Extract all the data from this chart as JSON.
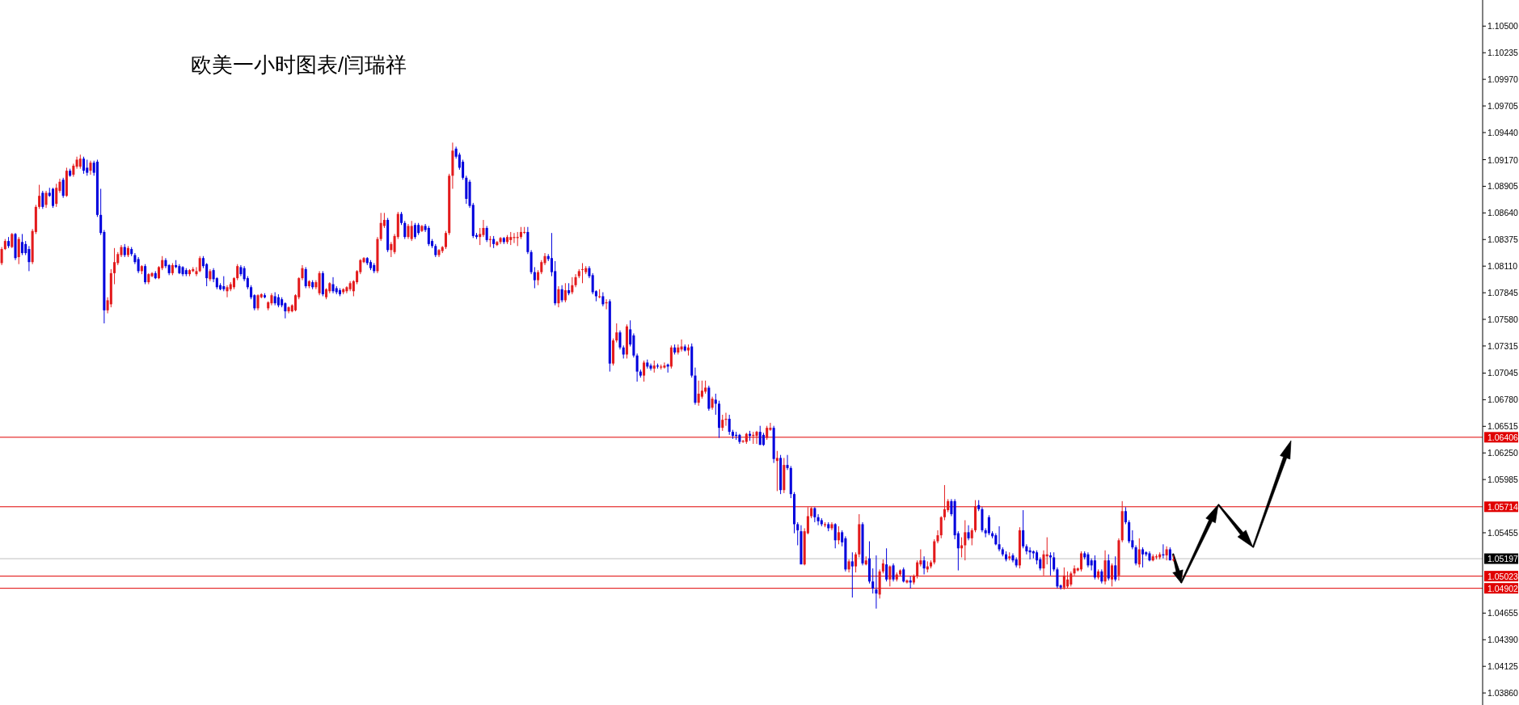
{
  "chart_data": {
    "type": "candlestick",
    "title": "欧美一小时图表/闫瑞祥",
    "ylim": [
      1.0374,
      1.1076
    ],
    "yticks": [
      {
        "value": 1.105,
        "label": "1.10500"
      },
      1.10235,
      {
        "value": 1.0997,
        "label": "1.09970"
      },
      1.09705,
      {
        "value": 1.0944,
        "label": "1.09440"
      },
      {
        "value": 1.0917,
        "label": "1.09170"
      },
      1.08905,
      {
        "value": 1.0864,
        "label": "1.08640"
      },
      1.08375,
      {
        "value": 1.0811,
        "label": "1.08110"
      },
      1.07845,
      {
        "value": 1.0758,
        "label": "1.07580"
      },
      1.07315,
      1.07045,
      {
        "value": 1.0678,
        "label": "1.06780"
      },
      1.06515,
      {
        "value": 1.0625,
        "label": "1.06250"
      },
      1.05985,
      1.05455,
      1.04655,
      {
        "value": 1.0439,
        "label": "1.04390"
      },
      1.04125,
      {
        "value": 1.0386,
        "label": "1.03860"
      }
    ],
    "tick_labels": "y",
    "grid": false,
    "ref_lines": [
      {
        "axis": "y",
        "value": 1.06406,
        "label": "1.06406",
        "color": "#e00000"
      },
      {
        "axis": "y",
        "value": 1.05714,
        "label": "1.05714",
        "color": "#e00000"
      },
      {
        "axis": "y",
        "value": 1.05197,
        "label": "1.05197",
        "color": "#c0c0c0"
      },
      {
        "axis": "y",
        "value": 1.05023,
        "label": "1.05023",
        "color": "#e00000"
      },
      {
        "axis": "y",
        "value": 1.04902,
        "label": "1.04902",
        "color": "#e00000"
      }
    ],
    "categories": [
      null,
      null,
      null,
      null,
      null,
      null,
      null,
      null,
      null,
      null,
      null,
      null,
      null,
      null,
      null,
      null,
      null,
      null,
      null,
      null,
      null,
      null,
      null,
      null,
      null,
      null,
      null,
      null,
      null,
      null,
      null,
      null,
      null,
      null,
      null,
      null,
      null,
      null,
      null,
      null,
      null,
      null,
      null,
      null,
      null,
      null,
      null,
      null,
      null,
      null,
      null,
      null,
      null,
      null,
      null,
      null,
      null,
      null,
      null,
      null,
      null,
      null,
      null,
      null,
      null,
      null,
      null,
      null,
      null,
      null,
      null,
      null,
      null,
      null,
      null,
      null,
      null,
      null,
      null,
      null,
      null,
      null,
      null,
      null,
      null,
      null,
      null,
      null,
      null,
      null,
      null,
      null,
      null,
      null,
      null,
      null,
      null,
      null,
      null,
      null,
      null,
      null,
      null,
      null,
      null,
      null,
      null,
      null,
      null,
      null,
      null,
      null,
      null,
      null,
      null,
      null,
      null,
      null,
      null,
      null,
      null,
      null,
      null,
      null,
      null,
      null,
      null,
      null,
      null,
      null,
      null,
      null,
      null,
      null,
      null,
      null,
      null,
      null,
      null,
      null,
      null,
      null,
      null,
      null,
      null,
      null,
      null,
      null,
      null,
      null,
      null,
      null,
      null,
      null,
      null,
      null,
      null,
      null,
      null,
      null,
      null,
      null,
      null,
      null,
      null,
      null,
      null,
      null,
      null,
      null,
      null,
      null,
      null,
      null,
      null,
      null,
      null,
      null,
      null,
      null,
      null,
      null,
      null,
      null,
      null,
      null,
      null,
      null,
      null,
      null,
      null,
      null,
      null,
      null,
      null,
      null,
      null,
      null,
      null,
      null,
      null,
      null,
      null,
      null,
      null,
      null,
      null,
      null,
      null,
      null,
      null,
      null,
      null,
      null,
      null,
      null,
      null,
      null,
      null,
      null,
      null,
      null,
      null,
      null,
      null,
      null,
      null,
      null,
      null,
      null,
      null,
      null,
      null,
      null,
      null,
      null,
      null,
      null,
      null,
      null,
      null,
      null,
      null,
      null,
      null,
      null,
      null,
      null,
      null,
      null,
      null,
      null,
      null,
      null,
      null,
      null,
      null,
      null,
      null,
      null,
      null,
      null,
      null,
      null,
      null,
      null,
      null,
      null,
      null,
      null,
      null,
      null,
      null,
      null,
      null,
      null,
      null,
      null,
      null,
      null,
      null,
      null,
      null,
      null,
      null,
      null,
      null,
      null,
      null,
      null,
      null,
      null,
      null,
      null,
      null,
      null,
      null,
      null,
      null,
      null,
      null,
      null,
      null,
      null,
      null,
      null,
      null,
      null,
      null,
      null,
      null,
      null,
      null,
      null,
      null,
      null,
      null,
      null,
      null,
      null,
      null,
      null,
      null,
      null,
      null,
      null,
      null,
      null,
      null,
      null,
      null,
      null,
      null,
      null,
      null,
      null,
      null,
      null,
      null,
      null,
      null,
      null,
      null,
      null,
      null,
      null,
      null,
      null,
      null,
      null,
      null,
      null,
      null,
      null,
      null,
      null,
      null,
      null,
      null,
      null,
      null,
      null,
      null,
      null,
      null,
      null,
      null,
      null,
      null,
      null,
      null,
      null,
      null,
      null,
      null,
      null,
      null,
      null,
      null,
      null,
      null,
      null,
      null,
      null,
      null,
      null,
      null,
      null,
      null,
      null,
      null,
      null,
      null,
      null,
      null,
      null,
      null,
      null,
      null,
      null,
      null,
      null,
      null,
      null,
      null,
      null,
      null,
      null,
      null,
      null,
      null,
      null,
      null,
      null,
      null,
      null,
      null,
      null,
      null,
      null,
      null,
      null,
      null,
      null,
      null,
      null,
      null,
      null,
      null,
      null,
      null,
      null,
      null,
      null
    ],
    "ohlc": [
      [
        1.0814,
        1.083,
        1.0812,
        1.0828
      ],
      [
        1.0828,
        1.0838,
        1.0827,
        1.0836
      ],
      [
        1.0836,
        1.084,
        1.0829,
        1.0831
      ],
      [
        1.083,
        1.0844,
        1.0829,
        1.0843
      ],
      [
        1.0843,
        1.0844,
        1.0817,
        1.0819
      ],
      [
        1.082,
        1.084,
        1.0813,
        1.0838
      ],
      [
        1.0835,
        1.0843,
        1.0822,
        1.0824
      ],
      [
        1.0833,
        1.0836,
        1.0822,
        1.0824
      ],
      [
        1.0828,
        1.0831,
        1.0806,
        1.0815
      ],
      [
        1.0815,
        1.0848,
        1.0813,
        1.0846
      ],
      [
        1.0845,
        1.0872,
        1.0843,
        1.087
      ],
      [
        1.087,
        1.0892,
        1.0868,
        1.0881
      ],
      [
        1.0884,
        1.0886,
        1.0868,
        1.087
      ],
      [
        1.0872,
        1.0886,
        1.0869,
        1.0884
      ],
      [
        1.0884,
        1.0889,
        1.088,
        1.0881
      ],
      [
        1.0888,
        1.0889,
        1.0869,
        1.0871
      ],
      [
        1.0873,
        1.0893,
        1.087,
        1.0889
      ],
      [
        1.0886,
        1.0898,
        1.0884,
        1.0895
      ],
      [
        1.0897,
        1.0899,
        1.0879,
        1.0881
      ],
      [
        1.0881,
        1.0909,
        1.088,
        1.0906
      ],
      [
        1.0906,
        1.0908,
        1.09,
        1.0901
      ],
      [
        1.0902,
        1.0913,
        1.09,
        1.0911
      ],
      [
        1.091,
        1.092,
        1.0908,
        1.0917
      ],
      [
        1.091,
        1.0922,
        1.0908,
        1.0918
      ],
      [
        1.0918,
        1.092,
        1.0903,
        1.0906
      ],
      [
        1.0909,
        1.0917,
        1.0901,
        1.0904
      ],
      [
        1.0906,
        1.0916,
        1.0902,
        1.0914
      ],
      [
        1.0914,
        1.0916,
        1.0901,
        1.0904
      ],
      [
        1.0915,
        1.0917,
        1.086,
        1.0862
      ],
      [
        1.0862,
        1.0888,
        1.0842,
        1.0844
      ],
      [
        1.0845,
        1.0847,
        1.0754,
        1.0767
      ],
      [
        1.0767,
        1.078,
        1.0764,
        1.0777
      ],
      [
        1.0773,
        1.0808,
        1.077,
        1.0804
      ],
      [
        1.0804,
        1.0829,
        1.0793,
        1.0815
      ],
      [
        1.0814,
        1.0825,
        1.0812,
        1.0823
      ],
      [
        1.0822,
        1.0832,
        1.082,
        1.083
      ],
      [
        1.083,
        1.0833,
        1.082,
        1.0822
      ],
      [
        1.0822,
        1.0831,
        1.082,
        1.0829
      ],
      [
        1.0828,
        1.083,
        1.0821,
        1.0823
      ],
      [
        1.0822,
        1.0824,
        1.0813,
        1.0815
      ],
      [
        1.0818,
        1.082,
        1.0804,
        1.0806
      ],
      [
        1.0806,
        1.0812,
        1.0803,
        1.0811
      ],
      [
        1.0811,
        1.0813,
        1.0793,
        1.0795
      ],
      [
        1.0795,
        1.0804,
        1.0793,
        1.0803
      ],
      [
        1.0801,
        1.0805,
        1.08,
        1.0804
      ],
      [
        1.0804,
        1.0806,
        1.0798,
        1.0799
      ],
      [
        1.0799,
        1.0811,
        1.0798,
        1.081
      ],
      [
        1.0809,
        1.0821,
        1.0807,
        1.0817
      ],
      [
        1.0817,
        1.0819,
        1.0809,
        1.0811
      ],
      [
        1.0812,
        1.0813,
        1.0802,
        1.0804
      ],
      [
        1.0804,
        1.0814,
        1.0802,
        1.0812
      ],
      [
        1.0812,
        1.0817,
        1.0809,
        1.081
      ],
      [
        1.0811,
        1.0813,
        1.0803,
        1.0804
      ],
      [
        1.081,
        1.0811,
        1.0801,
        1.0803
      ],
      [
        1.0807,
        1.0809,
        1.0801,
        1.0803
      ],
      [
        1.0803,
        1.0808,
        1.0801,
        1.0807
      ],
      [
        1.0806,
        1.081,
        1.0805,
        1.0808
      ],
      [
        1.0803,
        1.081,
        1.0801,
        1.0806
      ],
      [
        1.0806,
        1.0821,
        1.0805,
        1.0819
      ],
      [
        1.0819,
        1.0821,
        1.0809,
        1.0811
      ],
      [
        1.0813,
        1.0814,
        1.0791,
        1.0799
      ],
      [
        1.0798,
        1.0808,
        1.0796,
        1.0806
      ],
      [
        1.0807,
        1.0809,
        1.0795,
        1.0798
      ],
      [
        1.0799,
        1.08,
        1.0788,
        1.079
      ],
      [
        1.0792,
        1.0794,
        1.0787,
        1.0788
      ],
      [
        1.0791,
        1.0801,
        1.0786,
        1.0788
      ],
      [
        1.0786,
        1.0792,
        1.078,
        1.079
      ],
      [
        1.0788,
        1.0795,
        1.0786,
        1.0793
      ],
      [
        1.079,
        1.08,
        1.0788,
        1.0799
      ],
      [
        1.0799,
        1.0813,
        1.0797,
        1.0811
      ],
      [
        1.081,
        1.0812,
        1.0801,
        1.0803
      ],
      [
        1.0809,
        1.0811,
        1.0796,
        1.0798
      ],
      [
        1.0799,
        1.0801,
        1.0788,
        1.079
      ],
      [
        1.079,
        1.0792,
        1.0778,
        1.078
      ],
      [
        1.0782,
        1.0783,
        1.0767,
        1.0769
      ],
      [
        1.0769,
        1.0783,
        1.0767,
        1.0782
      ],
      [
        1.078,
        1.0784,
        1.0779,
        1.0783
      ],
      [
        1.0782,
        1.0784,
        1.0779,
        1.078
      ],
      [
        1.0769,
        1.0776,
        1.0767,
        1.0775
      ],
      [
        1.0774,
        1.0784,
        1.0772,
        1.0782
      ],
      [
        1.0781,
        1.0785,
        1.0772,
        1.0774
      ],
      [
        1.078,
        1.0783,
        1.077,
        1.0772
      ],
      [
        1.0778,
        1.078,
        1.077,
        1.0772
      ],
      [
        1.0774,
        1.0775,
        1.0759,
        1.0766
      ],
      [
        1.0766,
        1.0771,
        1.0764,
        1.077
      ],
      [
        1.0766,
        1.0773,
        1.0765,
        1.0772
      ],
      [
        1.0767,
        1.0783,
        1.0766,
        1.0782
      ],
      [
        1.078,
        1.08,
        1.0778,
        1.0799
      ],
      [
        1.0799,
        1.0812,
        1.0797,
        1.0809
      ],
      [
        1.0808,
        1.081,
        1.0789,
        1.0791
      ],
      [
        1.0791,
        1.0797,
        1.0789,
        1.0796
      ],
      [
        1.0795,
        1.0797,
        1.0788,
        1.079
      ],
      [
        1.079,
        1.0797,
        1.0788,
        1.0795
      ],
      [
        1.0784,
        1.0806,
        1.0782,
        1.0804
      ],
      [
        1.0804,
        1.0806,
        1.0781,
        1.0783
      ],
      [
        1.078,
        1.0789,
        1.0778,
        1.0788
      ],
      [
        1.0786,
        1.0795,
        1.0784,
        1.0794
      ],
      [
        1.0793,
        1.08,
        1.0784,
        1.0786
      ],
      [
        1.0789,
        1.0791,
        1.0783,
        1.0785
      ],
      [
        1.0787,
        1.0789,
        1.0781,
        1.0783
      ],
      [
        1.0785,
        1.0789,
        1.0783,
        1.0788
      ],
      [
        1.0786,
        1.0791,
        1.0784,
        1.079
      ],
      [
        1.0788,
        1.0796,
        1.0786,
        1.0794
      ],
      [
        1.0786,
        1.0797,
        1.0781,
        1.0796
      ],
      [
        1.0795,
        1.0807,
        1.0793,
        1.0806
      ],
      [
        1.0805,
        1.0818,
        1.0803,
        1.0817
      ],
      [
        1.0815,
        1.082,
        1.0814,
        1.0819
      ],
      [
        1.0819,
        1.082,
        1.0812,
        1.0814
      ],
      [
        1.0815,
        1.0817,
        1.0807,
        1.0809
      ],
      [
        1.0812,
        1.0814,
        1.0804,
        1.0806
      ],
      [
        1.0806,
        1.084,
        1.0804,
        1.0838
      ],
      [
        1.0838,
        1.0864,
        1.0836,
        1.0854
      ],
      [
        1.0851,
        1.0864,
        1.0849,
        1.0857
      ],
      [
        1.0857,
        1.0859,
        1.0825,
        1.0827
      ],
      [
        1.0827,
        1.0835,
        1.082,
        1.0833
      ],
      [
        1.0825,
        1.0843,
        1.0823,
        1.0841
      ],
      [
        1.084,
        1.0865,
        1.0838,
        1.0863
      ],
      [
        1.0863,
        1.0865,
        1.0852,
        1.0854
      ],
      [
        1.0854,
        1.0856,
        1.0838,
        1.084
      ],
      [
        1.084,
        1.0853,
        1.0838,
        1.0851
      ],
      [
        1.0838,
        1.0856,
        1.0836,
        1.0851
      ],
      [
        1.0852,
        1.0854,
        1.0838,
        1.084
      ],
      [
        1.0852,
        1.0854,
        1.0842,
        1.0844
      ],
      [
        1.0846,
        1.0852,
        1.0845,
        1.0851
      ],
      [
        1.0851,
        1.0853,
        1.0845,
        1.0847
      ],
      [
        1.0849,
        1.0851,
        1.0831,
        1.0833
      ],
      [
        1.0836,
        1.0838,
        1.0829,
        1.0831
      ],
      [
        1.0831,
        1.0833,
        1.082,
        1.0822
      ],
      [
        1.0822,
        1.0828,
        1.082,
        1.0827
      ],
      [
        1.0826,
        1.0831,
        1.0824,
        1.083
      ],
      [
        1.083,
        1.0846,
        1.0828,
        1.0844
      ],
      [
        1.0844,
        1.0903,
        1.0842,
        1.0901
      ],
      [
        1.0901,
        1.0934,
        1.0888,
        1.0926
      ],
      [
        1.0928,
        1.093,
        1.0918,
        1.092
      ],
      [
        1.0922,
        1.0924,
        1.0907,
        1.0909
      ],
      [
        1.0915,
        1.0917,
        1.0897,
        1.0899
      ],
      [
        1.0899,
        1.0901,
        1.0873,
        1.0878
      ],
      [
        1.0895,
        1.0897,
        1.0869,
        1.0871
      ],
      [
        1.0872,
        1.0874,
        1.0839,
        1.0841
      ],
      [
        1.0842,
        1.0844,
        1.0838,
        1.084
      ],
      [
        1.084,
        1.0849,
        1.0832,
        1.0843
      ],
      [
        1.0842,
        1.0857,
        1.084,
        1.0849
      ],
      [
        1.0849,
        1.0851,
        1.0835,
        1.0837
      ],
      [
        1.0837,
        1.0841,
        1.083,
        1.0838
      ],
      [
        1.0838,
        1.0841,
        1.0829,
        1.0833
      ],
      [
        1.0832,
        1.0836,
        1.0831,
        1.0835
      ],
      [
        1.0835,
        1.084,
        1.0833,
        1.0839
      ],
      [
        1.0839,
        1.084,
        1.0833,
        1.0835
      ],
      [
        1.0835,
        1.0842,
        1.0833,
        1.084
      ],
      [
        1.0837,
        1.0845,
        1.0832,
        1.084
      ],
      [
        1.0839,
        1.0844,
        1.0834,
        1.084
      ],
      [
        1.0839,
        1.0845,
        1.0831,
        1.084
      ],
      [
        1.084,
        1.085,
        1.0838,
        1.0845
      ],
      [
        1.0845,
        1.085,
        1.0843,
        1.0845
      ],
      [
        1.0845,
        1.085,
        1.0823,
        1.0825
      ],
      [
        1.0825,
        1.0827,
        1.0803,
        1.0805
      ],
      [
        1.0805,
        1.081,
        1.0789,
        1.0797
      ],
      [
        1.0797,
        1.0807,
        1.0792,
        1.0805
      ],
      [
        1.0805,
        1.0817,
        1.0803,
        1.0815
      ],
      [
        1.0814,
        1.0824,
        1.0812,
        1.0821
      ],
      [
        1.0821,
        1.0823,
        1.0816,
        1.0818
      ],
      [
        1.0819,
        1.0844,
        1.0801,
        1.0805
      ],
      [
        1.0806,
        1.0816,
        1.0772,
        1.0774
      ],
      [
        1.0774,
        1.0791,
        1.077,
        1.0788
      ],
      [
        1.0788,
        1.0792,
        1.0775,
        1.0777
      ],
      [
        1.0777,
        1.0794,
        1.0775,
        1.0787
      ],
      [
        1.0787,
        1.0794,
        1.0782,
        1.0784
      ],
      [
        1.0785,
        1.08,
        1.0783,
        1.0792
      ],
      [
        1.0792,
        1.0803,
        1.079,
        1.08
      ],
      [
        1.0801,
        1.0808,
        1.0799,
        1.0806
      ],
      [
        1.0808,
        1.0814,
        1.0794,
        1.0808
      ],
      [
        1.0805,
        1.0811,
        1.0803,
        1.0809
      ],
      [
        1.0809,
        1.0811,
        1.0799,
        1.0801
      ],
      [
        1.0802,
        1.0804,
        1.0783,
        1.0785
      ],
      [
        1.0786,
        1.0787,
        1.0776,
        1.0781
      ],
      [
        1.078,
        1.0788,
        1.0779,
        1.0781
      ],
      [
        1.0781,
        1.0785,
        1.0771,
        1.0773
      ],
      [
        1.0774,
        1.0778,
        1.0768,
        1.0775
      ],
      [
        1.0776,
        1.0778,
        1.0706,
        1.0714
      ],
      [
        1.0714,
        1.0739,
        1.0712,
        1.0737
      ],
      [
        1.0737,
        1.0754,
        1.0735,
        1.0745
      ],
      [
        1.0745,
        1.0747,
        1.0728,
        1.073
      ],
      [
        1.073,
        1.0732,
        1.0719,
        1.0723
      ],
      [
        1.0723,
        1.0753,
        1.0719,
        1.0751
      ],
      [
        1.0748,
        1.0757,
        1.0731,
        1.0733
      ],
      [
        1.0742,
        1.0744,
        1.072,
        1.0722
      ],
      [
        1.0722,
        1.0724,
        1.0696,
        1.0706
      ],
      [
        1.0706,
        1.0708,
        1.07,
        1.0702
      ],
      [
        1.0702,
        1.0717,
        1.0696,
        1.0715
      ],
      [
        1.0715,
        1.0718,
        1.0709,
        1.0711
      ],
      [
        1.0712,
        1.0714,
        1.0707,
        1.0709
      ],
      [
        1.0709,
        1.0717,
        1.0705,
        1.0712
      ],
      [
        1.0712,
        1.0714,
        1.0709,
        1.0711
      ],
      [
        1.071,
        1.0713,
        1.0708,
        1.0711
      ],
      [
        1.071,
        1.0715,
        1.0709,
        1.0712
      ],
      [
        1.0713,
        1.0714,
        1.0705,
        1.0711
      ],
      [
        1.0711,
        1.0732,
        1.0709,
        1.073
      ],
      [
        1.073,
        1.0733,
        1.0723,
        1.0725
      ],
      [
        1.0725,
        1.0733,
        1.0723,
        1.073
      ],
      [
        1.0728,
        1.0738,
        1.0726,
        1.0731
      ],
      [
        1.0731,
        1.0733,
        1.0726,
        1.0727
      ],
      [
        1.0727,
        1.0733,
        1.0722,
        1.073
      ],
      [
        1.0731,
        1.0734,
        1.07,
        1.0702
      ],
      [
        1.0702,
        1.071,
        1.0673,
        1.0675
      ],
      [
        1.0675,
        1.0697,
        1.0672,
        1.0684
      ],
      [
        1.0681,
        1.0697,
        1.0679,
        1.0687
      ],
      [
        1.0686,
        1.0697,
        1.0684,
        1.069
      ],
      [
        1.069,
        1.0692,
        1.0667,
        1.0669
      ],
      [
        1.067,
        1.0681,
        1.0668,
        1.0679
      ],
      [
        1.0678,
        1.0684,
        1.0663,
        1.0674
      ],
      [
        1.0674,
        1.0677,
        1.064,
        1.065
      ],
      [
        1.065,
        1.0663,
        1.0647,
        1.0658
      ],
      [
        1.0658,
        1.0665,
        1.0652,
        1.0659
      ],
      [
        1.0659,
        1.0663,
        1.0643,
        1.0646
      ],
      [
        1.0646,
        1.0648,
        1.0639,
        1.0642
      ],
      [
        1.0643,
        1.0646,
        1.0638,
        1.0642
      ],
      [
        1.0643,
        1.0644,
        1.0634,
        1.0636
      ],
      [
        1.0636,
        1.0638,
        1.0635,
        1.0637
      ],
      [
        1.0636,
        1.0645,
        1.0634,
        1.0644
      ],
      [
        1.0644,
        1.0647,
        1.0637,
        1.0642
      ],
      [
        1.0642,
        1.0646,
        1.0634,
        1.0643
      ],
      [
        1.0642,
        1.0647,
        1.0634,
        1.0646
      ],
      [
        1.0646,
        1.0652,
        1.0633,
        1.0633
      ],
      [
        1.0643,
        1.0645,
        1.0632,
        1.0633
      ],
      [
        1.064,
        1.0652,
        1.0638,
        1.065
      ],
      [
        1.0648,
        1.0655,
        1.0647,
        1.065
      ],
      [
        1.065,
        1.0652,
        1.0615,
        1.0619
      ],
      [
        1.0617,
        1.0627,
        1.0587,
        1.062
      ],
      [
        1.062,
        1.0623,
        1.0584,
        1.0588
      ],
      [
        1.0588,
        1.062,
        1.0585,
        1.0613
      ],
      [
        1.0613,
        1.0623,
        1.0608,
        1.061
      ],
      [
        1.061,
        1.0612,
        1.058,
        1.0584
      ],
      [
        1.0584,
        1.0586,
        1.0545,
        1.0554
      ],
      [
        1.0554,
        1.0556,
        1.0533,
        1.0548
      ],
      [
        1.0547,
        1.0553,
        1.0514,
        1.0514
      ],
      [
        1.0514,
        1.055,
        1.0513,
        1.0547
      ],
      [
        1.0545,
        1.0571,
        1.0544,
        1.0562
      ],
      [
        1.0562,
        1.0571,
        1.056,
        1.057
      ],
      [
        1.057,
        1.0571,
        1.0556,
        1.0561
      ],
      [
        1.0561,
        1.0564,
        1.0553,
        1.0557
      ],
      [
        1.0558,
        1.056,
        1.0552,
        1.0554
      ],
      [
        1.0553,
        1.0556,
        1.0551,
        1.0554
      ],
      [
        1.0554,
        1.0556,
        1.0547,
        1.055
      ],
      [
        1.055,
        1.0556,
        1.0548,
        1.0554
      ],
      [
        1.0554,
        1.0555,
        1.053,
        1.0538
      ],
      [
        1.0538,
        1.0552,
        1.0534,
        1.0546
      ],
      [
        1.0546,
        1.0548,
        1.0532,
        1.0536
      ],
      [
        1.054,
        1.0542,
        1.0507,
        1.0509
      ],
      [
        1.0509,
        1.0519,
        1.0506,
        1.0517
      ],
      [
        1.0517,
        1.0526,
        1.0481,
        1.0512
      ],
      [
        1.0512,
        1.0526,
        1.0506,
        1.0524
      ],
      [
        1.0524,
        1.0564,
        1.0521,
        1.0554
      ],
      [
        1.0554,
        1.0556,
        1.0513,
        1.0515
      ],
      [
        1.0514,
        1.0522,
        1.0513,
        1.0518
      ],
      [
        1.052,
        1.0537,
        1.0495,
        1.0497
      ],
      [
        1.0497,
        1.051,
        1.0485,
        1.049
      ],
      [
        1.0489,
        1.0523,
        1.047,
        1.0485
      ],
      [
        1.0484,
        1.0509,
        1.048,
        1.0507
      ],
      [
        1.0507,
        1.0519,
        1.0505,
        1.0515
      ],
      [
        1.0514,
        1.053,
        1.0497,
        1.0499
      ],
      [
        1.0499,
        1.0513,
        1.0492,
        1.0512
      ],
      [
        1.0513,
        1.0515,
        1.0497,
        1.0499
      ],
      [
        1.0499,
        1.0506,
        1.0497,
        1.0504
      ],
      [
        1.0504,
        1.0509,
        1.0502,
        1.0508
      ],
      [
        1.0509,
        1.0511,
        1.0496,
        1.0497
      ],
      [
        1.0496,
        1.0499,
        1.0495,
        1.0498
      ],
      [
        1.0498,
        1.0502,
        1.049,
        1.0496
      ],
      [
        1.0496,
        1.0504,
        1.0494,
        1.0502
      ],
      [
        1.0502,
        1.0518,
        1.05,
        1.0516
      ],
      [
        1.0514,
        1.0529,
        1.0512,
        1.0518
      ],
      [
        1.0518,
        1.0522,
        1.0504,
        1.051
      ],
      [
        1.0509,
        1.0517,
        1.0506,
        1.0512
      ],
      [
        1.0512,
        1.0518,
        1.051,
        1.0516
      ],
      [
        1.0516,
        1.0539,
        1.0514,
        1.0537
      ],
      [
        1.0537,
        1.0548,
        1.0535,
        1.0543
      ],
      [
        1.0543,
        1.0562,
        1.054,
        1.0561
      ],
      [
        1.0561,
        1.0593,
        1.0558,
        1.0569
      ],
      [
        1.0568,
        1.0579,
        1.0566,
        1.0577
      ],
      [
        1.0577,
        1.0579,
        1.0562,
        1.0564
      ],
      [
        1.0577,
        1.0579,
        1.0539,
        1.0543
      ],
      [
        1.0545,
        1.0547,
        1.0508,
        1.053
      ],
      [
        1.053,
        1.0541,
        1.0521,
        1.0533
      ],
      [
        1.0533,
        1.0558,
        1.0518,
        1.0546
      ],
      [
        1.0546,
        1.0553,
        1.0538,
        1.054
      ],
      [
        1.054,
        1.055,
        1.0533,
        1.0548
      ],
      [
        1.0548,
        1.0578,
        1.0546,
        1.0572
      ],
      [
        1.0573,
        1.0578,
        1.0567,
        1.0569
      ],
      [
        1.0569,
        1.0571,
        1.0546,
        1.0548
      ],
      [
        1.0548,
        1.055,
        1.0541,
        1.0545
      ],
      [
        1.0561,
        1.0563,
        1.0543,
        1.0545
      ],
      [
        1.0545,
        1.0547,
        1.054,
        1.0542
      ],
      [
        1.0543,
        1.0545,
        1.0533,
        1.0534
      ],
      [
        1.0534,
        1.0552,
        1.0527,
        1.0529
      ],
      [
        1.0529,
        1.0531,
        1.0522,
        1.0524
      ],
      [
        1.0524,
        1.0527,
        1.0517,
        1.0519
      ],
      [
        1.052,
        1.0526,
        1.0518,
        1.0522
      ],
      [
        1.0523,
        1.0525,
        1.0516,
        1.0518
      ],
      [
        1.0519,
        1.0521,
        1.0511,
        1.0513
      ],
      [
        1.0513,
        1.0551,
        1.051,
        1.0548
      ],
      [
        1.0548,
        1.0568,
        1.053,
        1.0532
      ],
      [
        1.0532,
        1.0534,
        1.0524,
        1.0527
      ],
      [
        1.0528,
        1.0531,
        1.0519,
        1.0526
      ],
      [
        1.0527,
        1.0528,
        1.052,
        1.0525
      ],
      [
        1.0526,
        1.0528,
        1.0514,
        1.0518
      ],
      [
        1.0519,
        1.0521,
        1.0508,
        1.051
      ],
      [
        1.051,
        1.0528,
        1.0503,
        1.0524
      ],
      [
        1.0522,
        1.0541,
        1.0514,
        1.0524
      ],
      [
        1.0523,
        1.0526,
        1.0503,
        1.0521
      ],
      [
        1.0521,
        1.0526,
        1.0507,
        1.0509
      ],
      [
        1.0509,
        1.0511,
        1.049,
        1.0492
      ],
      [
        1.0493,
        1.0494,
        1.0489,
        1.0491
      ],
      [
        1.0491,
        1.0511,
        1.0489,
        1.0503
      ],
      [
        1.0492,
        1.0507,
        1.049,
        1.0499
      ],
      [
        1.0494,
        1.0507,
        1.0492,
        1.0505
      ],
      [
        1.0505,
        1.0513,
        1.0503,
        1.051
      ],
      [
        1.0508,
        1.0511,
        1.0507,
        1.051
      ],
      [
        1.0509,
        1.0527,
        1.0507,
        1.0525
      ],
      [
        1.0525,
        1.0527,
        1.0519,
        1.0521
      ],
      [
        1.0524,
        1.0526,
        1.0511,
        1.0513
      ],
      [
        1.0518,
        1.052,
        1.0508,
        1.0513
      ],
      [
        1.0518,
        1.0523,
        1.0499,
        1.0501
      ],
      [
        1.0501,
        1.0509,
        1.0499,
        1.0507
      ],
      [
        1.0507,
        1.0509,
        1.0495,
        1.0497
      ],
      [
        1.0497,
        1.0528,
        1.0494,
        1.0518
      ],
      [
        1.0518,
        1.0524,
        1.0498,
        1.05
      ],
      [
        1.0499,
        1.0515,
        1.0492,
        1.0513
      ],
      [
        1.0513,
        1.0522,
        1.0497,
        1.0499
      ],
      [
        1.0503,
        1.054,
        1.0498,
        1.0538
      ],
      [
        1.0538,
        1.0577,
        1.0536,
        1.0567
      ],
      [
        1.0567,
        1.0571,
        1.0554,
        1.0556
      ],
      [
        1.0556,
        1.0558,
        1.0535,
        1.0537
      ],
      [
        1.0538,
        1.0548,
        1.0529,
        1.0531
      ],
      [
        1.0531,
        1.0533,
        1.0513,
        1.0515
      ],
      [
        1.0514,
        1.054,
        1.0511,
        1.0529
      ],
      [
        1.0529,
        1.0531,
        1.0511,
        1.0524
      ],
      [
        1.0526,
        1.0527,
        1.0522,
        1.0524
      ],
      [
        1.0525,
        1.0527,
        1.0517,
        1.0518
      ],
      [
        1.0518,
        1.0524,
        1.0517,
        1.0522
      ],
      [
        1.0521,
        1.0524,
        1.0519,
        1.0522
      ],
      [
        1.0521,
        1.0526,
        1.0519,
        1.0524
      ],
      [
        1.0524,
        1.0534,
        1.052,
        1.0523
      ],
      [
        1.0523,
        1.0532,
        1.0518,
        1.0529
      ],
      [
        1.0529,
        1.0531,
        1.0518,
        1.0518
      ],
      [
        1.0518,
        1.0523,
        1.0517,
        1.0519
      ],
      null,
      null,
      null,
      null,
      null,
      null,
      null,
      null,
      null,
      null,
      null,
      null,
      null,
      null,
      null,
      null,
      null,
      null,
      null,
      null,
      null,
      null,
      null,
      null,
      null,
      null,
      null,
      null,
      null,
      null,
      null,
      null,
      null,
      null,
      null,
      null,
      null,
      null,
      null,
      null,
      null,
      null,
      null,
      null,
      null,
      null,
      null,
      null,
      null,
      null,
      null,
      null,
      null,
      null,
      null,
      null,
      null,
      null,
      null,
      null,
      null,
      null,
      null,
      null,
      null,
      null,
      null,
      null,
      null,
      null,
      null,
      null,
      null,
      null,
      null,
      null,
      null,
      null,
      null,
      null,
      null,
      null,
      null,
      null,
      null,
      null,
      null,
      null,
      null,
      null
    ]
  }
}
